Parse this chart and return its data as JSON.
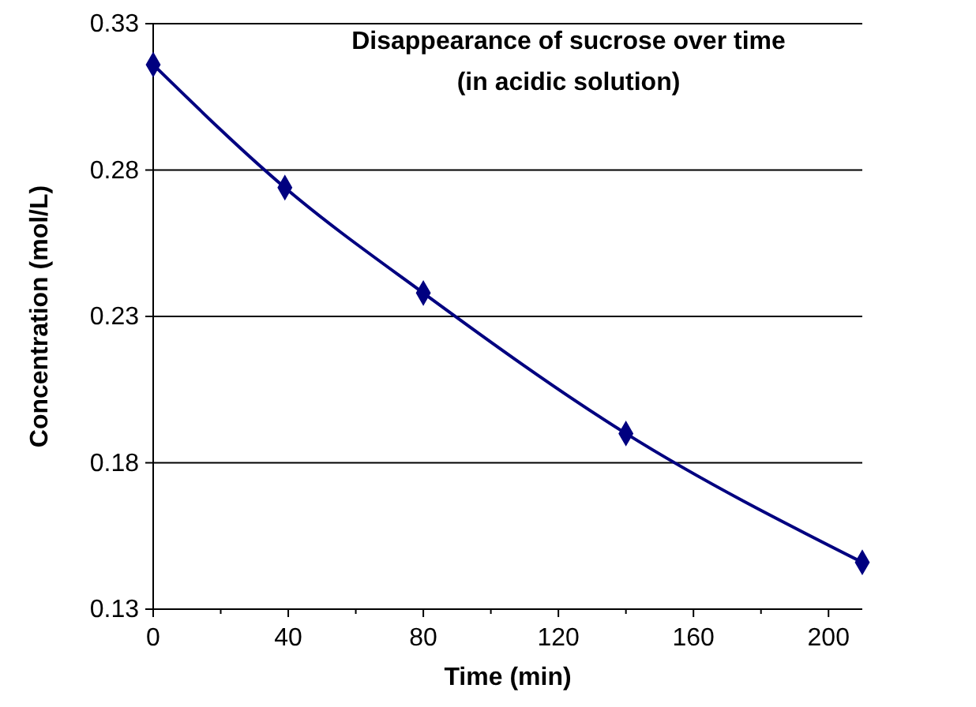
{
  "chart_data": {
    "type": "line",
    "title": "Disappearance of sucrose over time",
    "subtitle": "(in acidic solution)",
    "xlabel": "Time (min)",
    "ylabel": "Concentration (mol/L)",
    "x": [
      0,
      39,
      80,
      140,
      210
    ],
    "series": [
      {
        "color": "#000080",
        "values": [
          0.316,
          0.274,
          0.238,
          0.19,
          0.146
        ]
      }
    ],
    "xlim": [
      0,
      210
    ],
    "xticks": [
      0,
      {
        "value": 20,
        "label": null
      },
      40,
      {
        "value": 60,
        "label": null
      },
      80,
      {
        "value": 100,
        "label": null
      },
      120,
      {
        "value": 140,
        "label": null
      },
      160,
      {
        "value": 180,
        "label": null
      },
      200
    ],
    "ylim": [
      0.13,
      0.33
    ],
    "yticks": [
      0.13,
      0.18,
      0.23,
      0.28,
      0.33
    ],
    "grid": "y",
    "marker": "diamond",
    "line_style": "solid"
  }
}
